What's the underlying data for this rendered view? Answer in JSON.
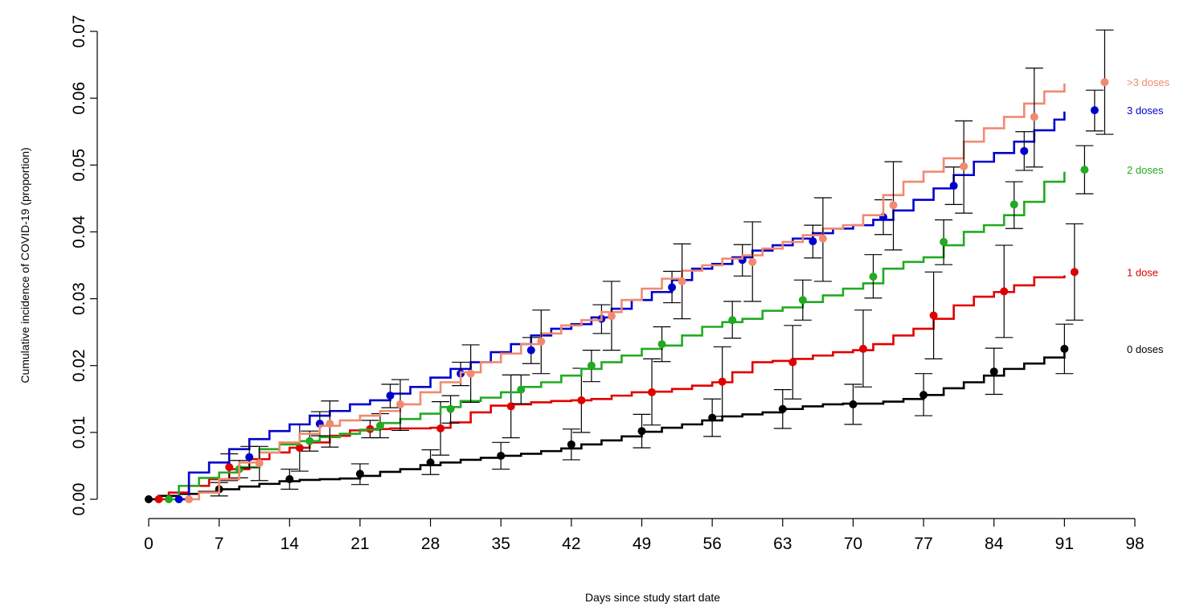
{
  "chart_data": {
    "type": "line",
    "title": "",
    "xlabel": "Days since study start date",
    "ylabel": "Cumulative incidence of COVID-19 (proportion)",
    "xlim": [
      0,
      98
    ],
    "ylim": [
      0,
      0.07
    ],
    "xticks": [
      "0",
      "7",
      "14",
      "21",
      "28",
      "35",
      "42",
      "49",
      "56",
      "63",
      "70",
      "77",
      "84",
      "91",
      "98"
    ],
    "yticks": [
      "0.00",
      "0.01",
      "0.02",
      "0.03",
      "0.04",
      "0.05",
      "0.06",
      "0.07"
    ],
    "grid": false,
    "legend": "direct labels at right end of each curve",
    "series": [
      {
        "name": "0 doses",
        "color": "#000000",
        "curve": {
          "x": [
            0,
            1,
            3,
            5,
            7,
            9,
            11,
            13,
            15,
            17,
            19,
            21,
            23,
            25,
            27,
            29,
            31,
            33,
            35,
            37,
            39,
            41,
            43,
            45,
            47,
            49,
            51,
            53,
            55,
            57,
            59,
            61,
            63,
            65,
            67,
            69,
            71,
            73,
            75,
            77,
            79,
            81,
            83,
            85,
            87,
            89,
            91
          ],
          "y": [
            0,
            0.0005,
            0.0008,
            0.0011,
            0.0015,
            0.0019,
            0.0023,
            0.0027,
            0.0029,
            0.003,
            0.0031,
            0.0035,
            0.0041,
            0.0045,
            0.0051,
            0.0055,
            0.0059,
            0.0062,
            0.0065,
            0.0068,
            0.0072,
            0.0076,
            0.0082,
            0.0088,
            0.0094,
            0.0101,
            0.0107,
            0.0112,
            0.0118,
            0.0124,
            0.0127,
            0.013,
            0.0135,
            0.0139,
            0.0142,
            0.0143,
            0.0143,
            0.0146,
            0.015,
            0.0156,
            0.0166,
            0.0175,
            0.0185,
            0.0195,
            0.0203,
            0.0212,
            0.022
          ]
        },
        "points": [
          {
            "x": 0,
            "y": 0,
            "lo": 0,
            "hi": 0
          },
          {
            "x": 7,
            "y": 0.0015,
            "lo": 0.0005,
            "hi": 0.0025
          },
          {
            "x": 14,
            "y": 0.003,
            "lo": 0.0015,
            "hi": 0.0045
          },
          {
            "x": 21,
            "y": 0.0038,
            "lo": 0.0022,
            "hi": 0.0053
          },
          {
            "x": 28,
            "y": 0.0055,
            "lo": 0.0037,
            "hi": 0.0074
          },
          {
            "x": 35,
            "y": 0.0065,
            "lo": 0.0045,
            "hi": 0.0085
          },
          {
            "x": 42,
            "y": 0.0082,
            "lo": 0.0059,
            "hi": 0.0105
          },
          {
            "x": 49,
            "y": 0.0102,
            "lo": 0.0077,
            "hi": 0.0127
          },
          {
            "x": 56,
            "y": 0.0122,
            "lo": 0.0094,
            "hi": 0.015
          },
          {
            "x": 63,
            "y": 0.0135,
            "lo": 0.0106,
            "hi": 0.0164
          },
          {
            "x": 70,
            "y": 0.0142,
            "lo": 0.0112,
            "hi": 0.0172
          },
          {
            "x": 77,
            "y": 0.0156,
            "lo": 0.0125,
            "hi": 0.0188
          },
          {
            "x": 84,
            "y": 0.0191,
            "lo": 0.0157,
            "hi": 0.0226
          },
          {
            "x": 91,
            "y": 0.0225,
            "lo": 0.0188,
            "hi": 0.0262
          }
        ]
      },
      {
        "name": "1 dose",
        "color": "#e00000",
        "curve": {
          "x": [
            1,
            2,
            4,
            6,
            8,
            10,
            12,
            14,
            16,
            18,
            20,
            22,
            24,
            26,
            28,
            30,
            32,
            34,
            36,
            38,
            40,
            42,
            44,
            46,
            48,
            50,
            52,
            54,
            56,
            58,
            60,
            62,
            64,
            66,
            68,
            70,
            72,
            74,
            76,
            78,
            80,
            82,
            84,
            86,
            88,
            91
          ],
          "y": [
            0,
            0.001,
            0.002,
            0.003,
            0.0045,
            0.006,
            0.007,
            0.0077,
            0.0085,
            0.0095,
            0.0103,
            0.0105,
            0.0106,
            0.0106,
            0.0107,
            0.0115,
            0.013,
            0.014,
            0.0142,
            0.0145,
            0.0147,
            0.0148,
            0.015,
            0.0155,
            0.016,
            0.0161,
            0.0165,
            0.017,
            0.0175,
            0.019,
            0.0205,
            0.0207,
            0.021,
            0.0215,
            0.022,
            0.0223,
            0.0232,
            0.0245,
            0.0255,
            0.027,
            0.029,
            0.0303,
            0.031,
            0.032,
            0.0332,
            0.0335
          ]
        },
        "points": [
          {
            "x": 1,
            "y": 0,
            "lo": 0,
            "hi": 0
          },
          {
            "x": 8,
            "y": 0.0048,
            "lo": 0.0028,
            "hi": 0.0068
          },
          {
            "x": 15,
            "y": 0.0077,
            "lo": 0.0042,
            "hi": 0.0112
          },
          {
            "x": 22,
            "y": 0.0105,
            "lo": 0.0092,
            "hi": 0.0118
          },
          {
            "x": 29,
            "y": 0.0106,
            "lo": 0.0066,
            "hi": 0.0146
          },
          {
            "x": 36,
            "y": 0.0139,
            "lo": 0.0092,
            "hi": 0.0186
          },
          {
            "x": 43,
            "y": 0.0148,
            "lo": 0.01,
            "hi": 0.0196
          },
          {
            "x": 50,
            "y": 0.016,
            "lo": 0.0111,
            "hi": 0.021
          },
          {
            "x": 57,
            "y": 0.0176,
            "lo": 0.0124,
            "hi": 0.0228
          },
          {
            "x": 64,
            "y": 0.0205,
            "lo": 0.015,
            "hi": 0.026
          },
          {
            "x": 71,
            "y": 0.0225,
            "lo": 0.0168,
            "hi": 0.0283
          },
          {
            "x": 78,
            "y": 0.0275,
            "lo": 0.021,
            "hi": 0.034
          },
          {
            "x": 85,
            "y": 0.0311,
            "lo": 0.0242,
            "hi": 0.038
          },
          {
            "x": 92,
            "y": 0.034,
            "lo": 0.0268,
            "hi": 0.0412
          }
        ]
      },
      {
        "name": "2 doses",
        "color": "#22aa22",
        "curve": {
          "x": [
            2,
            3,
            5,
            7,
            9,
            11,
            13,
            15,
            17,
            19,
            21,
            23,
            25,
            27,
            29,
            31,
            33,
            35,
            37,
            39,
            41,
            43,
            45,
            47,
            49,
            51,
            53,
            55,
            57,
            59,
            61,
            63,
            65,
            67,
            69,
            71,
            73,
            75,
            77,
            79,
            81,
            83,
            85,
            87,
            89,
            91
          ],
          "y": [
            0,
            0.002,
            0.0032,
            0.004,
            0.0048,
            0.0075,
            0.0082,
            0.0087,
            0.0093,
            0.0098,
            0.0104,
            0.0114,
            0.012,
            0.0128,
            0.0138,
            0.0147,
            0.0152,
            0.016,
            0.0168,
            0.0175,
            0.0185,
            0.0195,
            0.0205,
            0.0215,
            0.0225,
            0.023,
            0.0245,
            0.0258,
            0.0265,
            0.027,
            0.0282,
            0.0287,
            0.0295,
            0.0305,
            0.0315,
            0.0323,
            0.0345,
            0.0355,
            0.0362,
            0.038,
            0.04,
            0.041,
            0.0425,
            0.0445,
            0.0475,
            0.049
          ]
        },
        "points": [
          {
            "x": 2,
            "y": 0,
            "lo": 0,
            "hi": 0
          },
          {
            "x": 9,
            "y": 0.0045,
            "lo": 0.0032,
            "hi": 0.0058
          },
          {
            "x": 16,
            "y": 0.0087,
            "lo": 0.0072,
            "hi": 0.0102
          },
          {
            "x": 23,
            "y": 0.011,
            "lo": 0.0092,
            "hi": 0.0128
          },
          {
            "x": 30,
            "y": 0.0135,
            "lo": 0.0114,
            "hi": 0.0155
          },
          {
            "x": 37,
            "y": 0.0164,
            "lo": 0.0143,
            "hi": 0.0186
          },
          {
            "x": 44,
            "y": 0.02,
            "lo": 0.0176,
            "hi": 0.0223
          },
          {
            "x": 51,
            "y": 0.0232,
            "lo": 0.0206,
            "hi": 0.0258
          },
          {
            "x": 58,
            "y": 0.0268,
            "lo": 0.0241,
            "hi": 0.0296
          },
          {
            "x": 65,
            "y": 0.0298,
            "lo": 0.0268,
            "hi": 0.0328
          },
          {
            "x": 72,
            "y": 0.0333,
            "lo": 0.0301,
            "hi": 0.0366
          },
          {
            "x": 79,
            "y": 0.0385,
            "lo": 0.0351,
            "hi": 0.0418
          },
          {
            "x": 86,
            "y": 0.0441,
            "lo": 0.0405,
            "hi": 0.0475
          },
          {
            "x": 93,
            "y": 0.0493,
            "lo": 0.0457,
            "hi": 0.0529
          }
        ]
      },
      {
        "name": "3 doses",
        "color": "#0000cc",
        "curve": {
          "x": [
            3,
            4,
            6,
            8,
            10,
            12,
            14,
            16,
            18,
            20,
            22,
            24,
            26,
            28,
            30,
            32,
            34,
            36,
            38,
            40,
            42,
            44,
            46,
            48,
            50,
            52,
            54,
            56,
            58,
            60,
            62,
            64,
            66,
            68,
            70,
            72,
            74,
            76,
            78,
            80,
            82,
            84,
            86,
            88,
            90,
            91
          ],
          "y": [
            0,
            0.004,
            0.0055,
            0.0075,
            0.009,
            0.0102,
            0.0112,
            0.0125,
            0.0132,
            0.0142,
            0.0148,
            0.0158,
            0.0168,
            0.0182,
            0.0195,
            0.0205,
            0.022,
            0.0232,
            0.0245,
            0.0255,
            0.0262,
            0.0272,
            0.0285,
            0.0298,
            0.031,
            0.0328,
            0.0345,
            0.0352,
            0.0362,
            0.0372,
            0.038,
            0.039,
            0.0398,
            0.0405,
            0.041,
            0.0418,
            0.0432,
            0.0448,
            0.0465,
            0.0485,
            0.0505,
            0.0518,
            0.0535,
            0.0552,
            0.0568,
            0.058
          ]
        },
        "points": [
          {
            "x": 3,
            "y": 0,
            "lo": 0,
            "hi": 0
          },
          {
            "x": 10,
            "y": 0.0063,
            "lo": 0.0047,
            "hi": 0.0079
          },
          {
            "x": 17,
            "y": 0.0113,
            "lo": 0.0095,
            "hi": 0.0131
          },
          {
            "x": 24,
            "y": 0.0155,
            "lo": 0.0137,
            "hi": 0.0172
          },
          {
            "x": 31,
            "y": 0.0188,
            "lo": 0.017,
            "hi": 0.0205
          },
          {
            "x": 38,
            "y": 0.0223,
            "lo": 0.0203,
            "hi": 0.0242
          },
          {
            "x": 45,
            "y": 0.027,
            "lo": 0.0248,
            "hi": 0.0291
          },
          {
            "x": 52,
            "y": 0.0317,
            "lo": 0.0294,
            "hi": 0.0341
          },
          {
            "x": 59,
            "y": 0.0358,
            "lo": 0.0334,
            "hi": 0.0381
          },
          {
            "x": 66,
            "y": 0.0386,
            "lo": 0.0361,
            "hi": 0.041
          },
          {
            "x": 73,
            "y": 0.0422,
            "lo": 0.0396,
            "hi": 0.0448
          },
          {
            "x": 80,
            "y": 0.0469,
            "lo": 0.0441,
            "hi": 0.0497
          },
          {
            "x": 87,
            "y": 0.0521,
            "lo": 0.0492,
            "hi": 0.055
          },
          {
            "x": 94,
            "y": 0.0582,
            "lo": 0.0551,
            "hi": 0.0612
          }
        ]
      },
      {
        "name": ">3 doses",
        "color": "#f08a70",
        "curve": {
          "x": [
            4,
            5,
            7,
            9,
            11,
            13,
            15,
            17,
            19,
            21,
            23,
            25,
            27,
            29,
            31,
            33,
            35,
            37,
            39,
            41,
            43,
            45,
            47,
            49,
            51,
            53,
            55,
            57,
            59,
            61,
            63,
            65,
            67,
            69,
            71,
            73,
            75,
            77,
            79,
            81,
            83,
            85,
            87,
            89,
            91
          ],
          "y": [
            0,
            0.001,
            0.003,
            0.0055,
            0.007,
            0.0085,
            0.0098,
            0.011,
            0.0118,
            0.0125,
            0.0132,
            0.0142,
            0.016,
            0.0175,
            0.019,
            0.0205,
            0.0218,
            0.0232,
            0.0248,
            0.026,
            0.0268,
            0.028,
            0.0298,
            0.0315,
            0.033,
            0.0342,
            0.035,
            0.036,
            0.0365,
            0.0375,
            0.0385,
            0.0395,
            0.0405,
            0.041,
            0.0425,
            0.0455,
            0.0475,
            0.049,
            0.051,
            0.0535,
            0.0555,
            0.0572,
            0.0592,
            0.061,
            0.0622
          ]
        },
        "points": [
          {
            "x": 4,
            "y": 0,
            "lo": 0,
            "hi": 0
          },
          {
            "x": 11,
            "y": 0.0054,
            "lo": 0.0028,
            "hi": 0.0079
          },
          {
            "x": 18,
            "y": 0.0113,
            "lo": 0.0078,
            "hi": 0.0147
          },
          {
            "x": 25,
            "y": 0.0142,
            "lo": 0.0103,
            "hi": 0.0179
          },
          {
            "x": 32,
            "y": 0.0188,
            "lo": 0.0145,
            "hi": 0.0231
          },
          {
            "x": 39,
            "y": 0.0236,
            "lo": 0.0188,
            "hi": 0.0283
          },
          {
            "x": 46,
            "y": 0.0274,
            "lo": 0.0223,
            "hi": 0.0326
          },
          {
            "x": 53,
            "y": 0.0326,
            "lo": 0.027,
            "hi": 0.0382
          },
          {
            "x": 60,
            "y": 0.0355,
            "lo": 0.0296,
            "hi": 0.0415
          },
          {
            "x": 67,
            "y": 0.039,
            "lo": 0.0326,
            "hi": 0.0451
          },
          {
            "x": 74,
            "y": 0.044,
            "lo": 0.0373,
            "hi": 0.0505
          },
          {
            "x": 81,
            "y": 0.0498,
            "lo": 0.0428,
            "hi": 0.0566
          },
          {
            "x": 88,
            "y": 0.0572,
            "lo": 0.0497,
            "hi": 0.0645
          },
          {
            "x": 95,
            "y": 0.0624,
            "lo": 0.0546,
            "hi": 0.0702
          }
        ]
      }
    ]
  }
}
